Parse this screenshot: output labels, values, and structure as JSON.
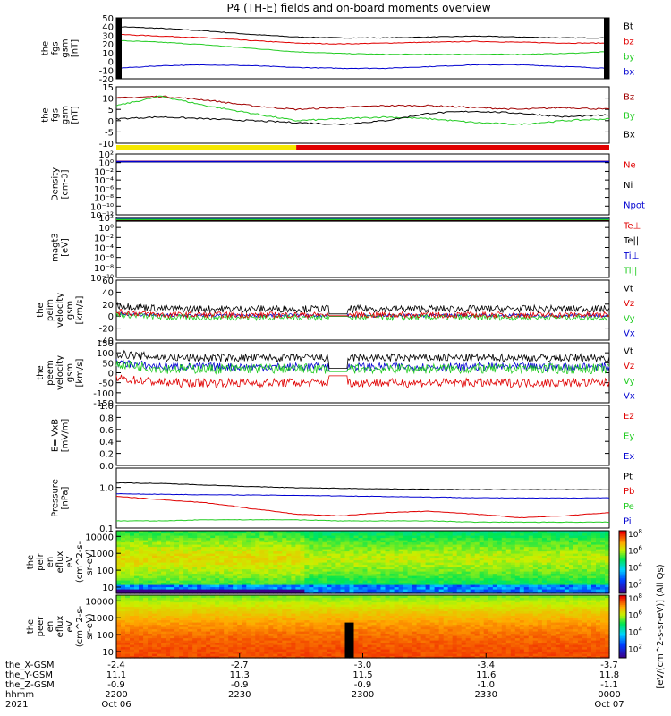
{
  "title": "P4 (TH-E) fields and on-board moments overview",
  "chart_data": [
    {
      "type": "line",
      "ylabel": [
        "the",
        "fgs",
        "gsm",
        "[nT]"
      ],
      "ylim": [
        -20,
        50
      ],
      "yticks": [
        -20,
        -10,
        0,
        10,
        20,
        30,
        40,
        50
      ],
      "series": [
        {
          "name": "Bt",
          "color": "#000000",
          "values": [
            40,
            38,
            35,
            31,
            28,
            27,
            27,
            28,
            29,
            28,
            27,
            27
          ]
        },
        {
          "name": "bz",
          "color": "#e00000",
          "values": [
            31,
            29,
            27,
            24,
            21,
            20,
            21,
            22,
            23,
            22,
            21,
            21
          ]
        },
        {
          "name": "by",
          "color": "#22cc22",
          "values": [
            24,
            22,
            19,
            15,
            11,
            9,
            8,
            8,
            8,
            8,
            9,
            11
          ]
        },
        {
          "name": "bx",
          "color": "#0000d0",
          "values": [
            -8,
            -5,
            -4,
            -5,
            -7,
            -8,
            -8,
            -6,
            -4,
            -4,
            -6,
            -8
          ]
        }
      ]
    },
    {
      "type": "line",
      "ylabel": [
        "the",
        "fgs",
        "gsm",
        "[nT]"
      ],
      "ylim": [
        -15,
        15
      ],
      "yticks": [
        -10,
        -5,
        0,
        5,
        10,
        15
      ],
      "series": [
        {
          "name": "Bz",
          "color": "#a00000",
          "values": [
            9,
            10,
            8,
            5,
            3,
            4,
            5,
            5,
            4,
            3,
            4,
            3
          ]
        },
        {
          "name": "By",
          "color": "#22cc22",
          "values": [
            5,
            10,
            5,
            1,
            -3,
            -2,
            -1,
            -2,
            -4,
            -5,
            -3,
            -2
          ]
        },
        {
          "name": "Bx",
          "color": "#000000",
          "values": [
            -2,
            -1,
            -2,
            -3,
            -4,
            -5,
            -3,
            1,
            2,
            1,
            -1,
            0
          ]
        }
      ]
    },
    {
      "type": "bar",
      "segments": [
        {
          "from": 0,
          "to": 0.365,
          "color": "#f5e800"
        },
        {
          "from": 0.365,
          "to": 1,
          "color": "#e00000"
        }
      ]
    },
    {
      "type": "line",
      "ylabel": [
        "Density",
        "[cm-3]"
      ],
      "ylim": [
        -12,
        2
      ],
      "yticks": [
        "10⁻¹²",
        "10⁻¹⁰",
        "10⁻⁸",
        "10⁻⁶",
        "10⁻⁴",
        "10⁻²",
        "10⁰",
        "10²"
      ],
      "series": [
        {
          "name": "Ne",
          "color": "#e00000",
          "value": 0.3
        },
        {
          "name": "Ni",
          "color": "#000000",
          "value": 0.2
        },
        {
          "name": "Npot",
          "color": "#0000d0",
          "value": 0.25
        }
      ]
    },
    {
      "type": "line",
      "ylabel": [
        "magt3",
        "[eV]"
      ],
      "ylim": [
        -10,
        2
      ],
      "yticks": [
        "10⁻¹⁰",
        "10⁻⁸",
        "10⁻⁶",
        "10⁻⁴",
        "10⁻²",
        "10⁰",
        "10²"
      ],
      "series": [
        {
          "name": "Te⊥",
          "color": "#e00000",
          "value": 1.5
        },
        {
          "name": "Te||",
          "color": "#000000",
          "value": 1.3
        },
        {
          "name": "Ti⊥",
          "color": "#0000d0",
          "value": 1.7
        },
        {
          "name": "Ti||",
          "color": "#22cc22",
          "value": 1.6
        }
      ]
    },
    {
      "type": "line",
      "ylabel": [
        "the",
        "peim",
        "velocity",
        "gsm",
        "[km/s]"
      ],
      "ylim": [
        -40,
        60
      ],
      "yticks": [
        -40,
        -20,
        0,
        20,
        40,
        60
      ],
      "series": [
        {
          "name": "Vt",
          "color": "#000000",
          "base": 12,
          "noise": 6
        },
        {
          "name": "Vz",
          "color": "#e00000",
          "base": 2,
          "noise": 5
        },
        {
          "name": "Vy",
          "color": "#22cc22",
          "base": -2,
          "noise": 5
        },
        {
          "name": "Vx",
          "color": "#0000d0",
          "base": 1,
          "noise": 3
        }
      ]
    },
    {
      "type": "line",
      "ylabel": [
        "the",
        "peem",
        "velocity",
        "gsm",
        "[km/s]"
      ],
      "ylim": [
        -150,
        150
      ],
      "yticks": [
        -150,
        -100,
        -50,
        0,
        50,
        100,
        150
      ],
      "series": [
        {
          "name": "Vt",
          "color": "#000000",
          "base": 75,
          "noise": 20
        },
        {
          "name": "Vz",
          "color": "#e00000",
          "base": -50,
          "noise": 22
        },
        {
          "name": "Vy",
          "color": "#22cc22",
          "base": 20,
          "noise": 25
        },
        {
          "name": "Vx",
          "color": "#0000d0",
          "base": 30,
          "noise": 20
        }
      ]
    },
    {
      "type": "line",
      "ylabel": [
        "E=-VxB",
        "[mV/m]"
      ],
      "ylim": [
        0,
        1
      ],
      "yticks": [
        "0.0",
        "0.2",
        "0.4",
        "0.6",
        "0.8",
        "1.0"
      ],
      "series": [
        {
          "name": "Ez",
          "color": "#e00000"
        },
        {
          "name": "Ey",
          "color": "#22cc22"
        },
        {
          "name": "Ex",
          "color": "#0000d0"
        }
      ]
    },
    {
      "type": "line",
      "ylabel": [
        "Pressure",
        "[nPa]"
      ],
      "ylim": [
        0.1,
        3
      ],
      "yticks": [
        "0.1",
        "1.0"
      ],
      "series": [
        {
          "name": "Pt",
          "color": "#000000",
          "values": [
            1.3,
            1.25,
            1.15,
            1.05,
            0.98,
            0.95,
            0.92,
            0.9,
            0.88,
            0.88,
            0.88,
            0.88
          ]
        },
        {
          "name": "Pb",
          "color": "#e00000",
          "values": [
            0.6,
            0.5,
            0.42,
            0.3,
            0.22,
            0.2,
            0.24,
            0.26,
            0.22,
            0.18,
            0.2,
            0.24
          ]
        },
        {
          "name": "Pe",
          "color": "#22cc22",
          "values": [
            0.15,
            0.15,
            0.16,
            0.16,
            0.16,
            0.15,
            0.15,
            0.15,
            0.14,
            0.14,
            0.14,
            0.14
          ]
        },
        {
          "name": "Pi",
          "color": "#0000d0",
          "values": [
            0.7,
            0.68,
            0.66,
            0.65,
            0.64,
            0.62,
            0.6,
            0.58,
            0.56,
            0.55,
            0.55,
            0.56
          ]
        }
      ]
    },
    {
      "type": "heatmap",
      "ylabel": [
        "the",
        "peir",
        "en",
        "eflux",
        "eV",
        "(cm^2-s-",
        "sr-eV)"
      ],
      "yticks": [
        "10",
        "100",
        "1000",
        "10000"
      ],
      "zlabel": "[eV/(cm^2-s-sr-eV)] (All Qs)",
      "ztick_exponents": [
        "2",
        "4",
        "6",
        "8"
      ]
    },
    {
      "type": "heatmap",
      "ylabel": [
        "the",
        "peer",
        "en",
        "eflux",
        "eV",
        "(cm^2-s-",
        "sr-eV)"
      ],
      "yticks": [
        "10",
        "100",
        "1000",
        "10000"
      ],
      "zlabel": "[eV/(cm^2-s-sr-eV)] (All Qs)",
      "ztick_exponents": [
        "2",
        "4",
        "6",
        "8"
      ]
    }
  ],
  "x_axis": {
    "row_labels": [
      "the_X-GSM",
      "the_Y-GSM",
      "the_Z-GSM",
      "hhmm",
      "2021"
    ],
    "ticks": [
      {
        "X": "-2.4",
        "Y": "11.1",
        "Z": "-0.9",
        "hhmm": "2200",
        "date": "Oct 06"
      },
      {
        "X": "-2.7",
        "Y": "11.3",
        "Z": "-0.9",
        "hhmm": "2230",
        "date": ""
      },
      {
        "X": "-3.0",
        "Y": "11.5",
        "Z": "-0.9",
        "hhmm": "2300",
        "date": ""
      },
      {
        "X": "-3.4",
        "Y": "11.6",
        "Z": "-1.0",
        "hhmm": "2330",
        "date": ""
      },
      {
        "X": "-3.7",
        "Y": "11.8",
        "Z": "-1.1",
        "hhmm": "0000",
        "date": "Oct 07"
      }
    ]
  }
}
